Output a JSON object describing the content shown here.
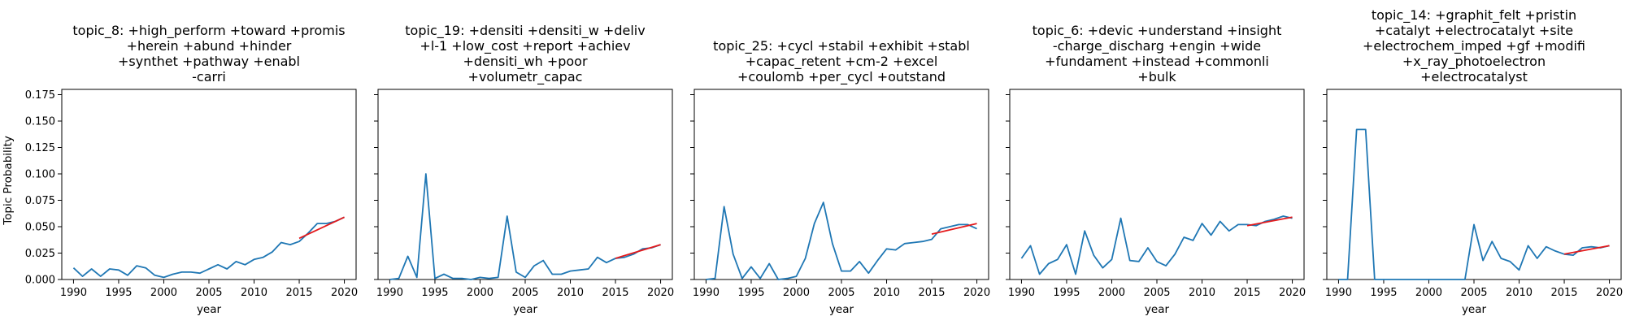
{
  "figure": {
    "ylabel": "Topic Probability",
    "xlabel": "year"
  },
  "chart_data": [
    {
      "type": "line",
      "title_lines": [
        "topic_8: +high_perform +toward +promis",
        "+herein +abund +hinder",
        "+synthet +pathway +enabl",
        "-carri"
      ],
      "xlabel": "year",
      "ylabel": "Topic Probability",
      "xlim": [
        1988.7,
        2021.3
      ],
      "ylim": [
        0,
        0.18
      ],
      "xticks": [
        "1990",
        "1995",
        "2000",
        "2005",
        "2010",
        "2015",
        "2020"
      ],
      "yticks": [
        "0.000",
        "0.025",
        "0.050",
        "0.075",
        "0.100",
        "0.125",
        "0.150",
        "0.175"
      ],
      "x": [
        1990,
        1991,
        1992,
        1993,
        1994,
        1995,
        1996,
        1997,
        1998,
        1999,
        2000,
        2001,
        2002,
        2003,
        2004,
        2005,
        2006,
        2007,
        2008,
        2009,
        2010,
        2011,
        2012,
        2013,
        2014,
        2015,
        2016,
        2017,
        2018,
        2019,
        2020
      ],
      "values": [
        0.011,
        0.003,
        0.01,
        0.003,
        0.01,
        0.009,
        0.004,
        0.013,
        0.011,
        0.004,
        0.002,
        0.005,
        0.007,
        0.007,
        0.006,
        0.01,
        0.014,
        0.01,
        0.017,
        0.014,
        0.019,
        0.021,
        0.026,
        0.035,
        0.033,
        0.036,
        0.044,
        0.053,
        0.053,
        0.055,
        0.059
      ],
      "trend": {
        "x": [
          2015,
          2020
        ],
        "y": [
          0.039,
          0.059
        ]
      }
    },
    {
      "type": "line",
      "title_lines": [
        "topic_19: +densiti +densiti_w +deliv",
        "+l-1 +low_cost +report +achiev",
        "+densiti_wh +poor",
        "+volumetr_capac"
      ],
      "xlabel": "year",
      "ylabel": "",
      "xlim": [
        1988.7,
        2021.3
      ],
      "ylim": [
        0,
        0.18
      ],
      "xticks": [
        "1990",
        "1995",
        "2000",
        "2005",
        "2010",
        "2015",
        "2020"
      ],
      "yticks": [],
      "x": [
        1990,
        1991,
        1992,
        1993,
        1994,
        1995,
        1996,
        1997,
        1998,
        1999,
        2000,
        2001,
        2002,
        2003,
        2004,
        2005,
        2006,
        2007,
        2008,
        2009,
        2010,
        2011,
        2012,
        2013,
        2014,
        2015,
        2016,
        2017,
        2018,
        2019,
        2020
      ],
      "values": [
        0.0,
        0.001,
        0.022,
        0.002,
        0.1,
        0.001,
        0.005,
        0.001,
        0.001,
        0.0,
        0.002,
        0.001,
        0.002,
        0.06,
        0.007,
        0.002,
        0.013,
        0.018,
        0.005,
        0.005,
        0.008,
        0.009,
        0.01,
        0.021,
        0.016,
        0.02,
        0.021,
        0.024,
        0.029,
        0.03,
        0.033
      ],
      "trend": {
        "x": [
          2015,
          2020
        ],
        "y": [
          0.02,
          0.033
        ]
      }
    },
    {
      "type": "line",
      "title_lines": [
        "topic_25: +cycl +stabil +exhibit +stabl",
        "+capac_retent +cm-2 +excel",
        "+coulomb +per_cycl +outstand"
      ],
      "xlabel": "year",
      "ylabel": "",
      "xlim": [
        1988.7,
        2021.3
      ],
      "ylim": [
        0,
        0.18
      ],
      "xticks": [
        "1990",
        "1995",
        "2000",
        "2005",
        "2010",
        "2015",
        "2020"
      ],
      "yticks": [],
      "x": [
        1990,
        1991,
        1992,
        1993,
        1994,
        1995,
        1996,
        1997,
        1998,
        1999,
        2000,
        2001,
        2002,
        2003,
        2004,
        2005,
        2006,
        2007,
        2008,
        2009,
        2010,
        2011,
        2012,
        2013,
        2014,
        2015,
        2016,
        2017,
        2018,
        2019,
        2020
      ],
      "values": [
        0.0,
        0.001,
        0.069,
        0.024,
        0.001,
        0.012,
        0.001,
        0.015,
        0.0,
        0.001,
        0.003,
        0.02,
        0.053,
        0.073,
        0.034,
        0.008,
        0.008,
        0.017,
        0.006,
        0.018,
        0.029,
        0.028,
        0.034,
        0.035,
        0.036,
        0.038,
        0.048,
        0.05,
        0.052,
        0.052,
        0.048
      ],
      "trend": {
        "x": [
          2015,
          2020
        ],
        "y": [
          0.043,
          0.053
        ]
      }
    },
    {
      "type": "line",
      "title_lines": [
        "topic_6: +devic +understand +insight",
        "-charge_discharg +engin +wide",
        "+fundament +instead +commonli",
        "+bulk"
      ],
      "xlabel": "year",
      "ylabel": "",
      "xlim": [
        1988.7,
        2021.3
      ],
      "ylim": [
        0,
        0.18
      ],
      "xticks": [
        "1990",
        "1995",
        "2000",
        "2005",
        "2010",
        "2015",
        "2020"
      ],
      "yticks": [],
      "x": [
        1990,
        1991,
        1992,
        1993,
        1994,
        1995,
        1996,
        1997,
        1998,
        1999,
        2000,
        2001,
        2002,
        2003,
        2004,
        2005,
        2006,
        2007,
        2008,
        2009,
        2010,
        2011,
        2012,
        2013,
        2014,
        2015,
        2016,
        2017,
        2018,
        2019,
        2020
      ],
      "values": [
        0.02,
        0.032,
        0.005,
        0.015,
        0.019,
        0.033,
        0.005,
        0.046,
        0.023,
        0.011,
        0.019,
        0.058,
        0.018,
        0.017,
        0.03,
        0.017,
        0.013,
        0.024,
        0.04,
        0.037,
        0.053,
        0.042,
        0.055,
        0.046,
        0.052,
        0.052,
        0.051,
        0.055,
        0.057,
        0.06,
        0.058
      ],
      "trend": {
        "x": [
          2015,
          2020
        ],
        "y": [
          0.051,
          0.059
        ]
      }
    },
    {
      "type": "line",
      "title_lines": [
        "topic_14: +graphit_felt +pristin",
        "+catalyt +electrocatalyt +site",
        "+electrochem_imped +gf +modifi",
        "+x_ray_photoelectron",
        "+electrocatalyst"
      ],
      "xlabel": "year",
      "ylabel": "",
      "xlim": [
        1988.7,
        2021.3
      ],
      "ylim": [
        0,
        0.18
      ],
      "xticks": [
        "1990",
        "1995",
        "2000",
        "2005",
        "2010",
        "2015",
        "2020"
      ],
      "yticks": [],
      "x": [
        1990,
        1991,
        1992,
        1993,
        1994,
        1995,
        1996,
        1997,
        1998,
        1999,
        2000,
        2001,
        2002,
        2003,
        2004,
        2005,
        2006,
        2007,
        2008,
        2009,
        2010,
        2011,
        2012,
        2013,
        2014,
        2015,
        2016,
        2017,
        2018,
        2019,
        2020
      ],
      "values": [
        0.0,
        0.0,
        0.142,
        0.142,
        0.0,
        0.0,
        0.0,
        0.0,
        0.0,
        0.0,
        0.0,
        0.0,
        0.0,
        0.0,
        0.0,
        0.052,
        0.018,
        0.036,
        0.02,
        0.017,
        0.009,
        0.032,
        0.02,
        0.031,
        0.027,
        0.024,
        0.023,
        0.03,
        0.031,
        0.03,
        0.032
      ],
      "trend": {
        "x": [
          2015,
          2020
        ],
        "y": [
          0.024,
          0.032
        ]
      }
    }
  ]
}
